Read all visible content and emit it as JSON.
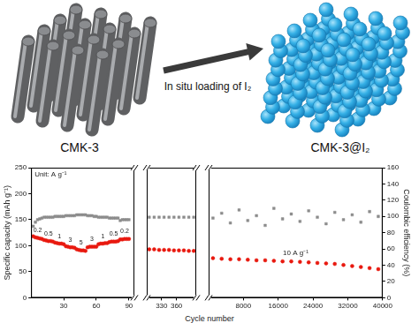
{
  "diagram": {
    "left_label": "CMK-3",
    "arrow_label": "In situ loading of I₂",
    "right_label": "CMK-3@I₂"
  },
  "chart_data": [
    {
      "type": "scatter",
      "grid": false,
      "y_label": "Specific capacity (mAh g⁻¹)",
      "xlim": [
        0,
        95
      ],
      "xticks": [
        30,
        60,
        90
      ],
      "ylim": [
        0,
        250
      ],
      "yticks": [
        0,
        50,
        100,
        150,
        200,
        250
      ],
      "y2lim": [
        0,
        160
      ],
      "x": [
        2,
        4,
        6,
        8,
        10,
        12,
        14,
        16,
        18,
        20,
        22,
        24,
        26,
        28,
        30,
        32,
        34,
        36,
        38,
        40,
        42,
        44,
        46,
        48,
        50,
        52,
        54,
        56,
        58,
        60,
        62,
        64,
        66,
        68,
        70,
        72,
        74,
        76,
        78,
        80,
        82,
        84,
        86,
        88,
        90
      ],
      "series": [
        {
          "color": "#e8190f",
          "marker": "circle",
          "values": [
            118,
            116,
            115,
            114,
            113,
            111,
            110,
            109,
            109,
            108,
            106,
            105,
            104,
            104,
            103,
            99,
            98,
            97,
            97,
            96,
            93,
            92,
            91,
            91,
            90,
            97,
            98,
            98,
            98,
            98,
            103,
            104,
            104,
            105,
            105,
            107,
            108,
            108,
            108,
            109,
            112,
            112,
            113,
            113,
            113
          ]
        },
        {
          "color": "#8c8c8c",
          "marker": "square",
          "axis": "y2",
          "values": [
            88,
            93,
            96,
            97,
            98,
            99,
            99,
            99,
            99,
            99,
            100,
            100,
            100,
            100,
            100,
            101,
            101,
            101,
            101,
            101,
            102,
            102,
            102,
            102,
            102,
            101,
            101,
            101,
            100,
            100,
            99,
            99,
            99,
            99,
            99,
            98,
            98,
            98,
            98,
            98,
            95,
            96,
            96,
            96,
            96
          ]
        }
      ],
      "annotations": [
        {
          "text": "Unit: A g⁻¹"
        },
        {
          "text": "0.2",
          "x": 6
        },
        {
          "text": "0.5",
          "x": 16
        },
        {
          "text": "1",
          "x": 26
        },
        {
          "text": "3",
          "x": 36
        },
        {
          "text": "5",
          "x": 46
        },
        {
          "text": "3",
          "x": 56
        },
        {
          "text": "1",
          "x": 66
        },
        {
          "text": "0.5",
          "x": 76
        },
        {
          "text": "0.2",
          "x": 86
        }
      ]
    },
    {
      "type": "scatter",
      "grid": false,
      "x_label": "Cycle number",
      "xlim": [
        300,
        400
      ],
      "xticks": [
        330,
        360
      ],
      "ylim": [
        0,
        250
      ],
      "y2lim": [
        0,
        160
      ],
      "x": [
        305,
        315,
        325,
        335,
        345,
        355,
        365,
        375,
        385,
        395
      ],
      "series": [
        {
          "color": "#e8190f",
          "marker": "circle",
          "values": [
            93,
            93,
            92,
            92,
            92,
            91,
            91,
            91,
            90,
            90
          ]
        },
        {
          "color": "#8c8c8c",
          "marker": "square",
          "axis": "y2",
          "values": [
            99,
            99,
            99,
            99,
            99,
            99,
            99,
            99,
            99,
            99
          ]
        }
      ]
    },
    {
      "type": "scatter",
      "grid": false,
      "y2_label": "Coulombic efficiency (%)",
      "xlim": [
        0,
        40000
      ],
      "xticks": [
        8000,
        16000,
        24000,
        32000,
        40000
      ],
      "ylim": [
        0,
        250
      ],
      "y2lim": [
        0,
        160
      ],
      "y2ticks": [
        0,
        20,
        40,
        60,
        80,
        100,
        120,
        140,
        160
      ],
      "x": [
        1000,
        3000,
        5000,
        7000,
        9000,
        11000,
        13000,
        15000,
        17000,
        19000,
        21000,
        23000,
        25000,
        27000,
        29000,
        31000,
        33000,
        35000,
        37000,
        39000
      ],
      "series": [
        {
          "color": "#e8190f",
          "marker": "circle",
          "values": [
            76,
            75,
            74,
            74,
            73,
            72,
            72,
            71,
            70,
            70,
            69,
            68,
            67,
            66,
            65,
            63,
            61,
            59,
            57,
            55
          ]
        },
        {
          "color": "#8c8c8c",
          "marker": "square",
          "axis": "y2",
          "values": [
            98,
            104,
            92,
            108,
            95,
            101,
            89,
            110,
            97,
            103,
            94,
            107,
            99,
            91,
            105,
            96,
            102,
            93,
            106,
            100
          ]
        }
      ],
      "annotations": [
        {
          "text": "10 A g⁻¹",
          "x": 20000
        }
      ]
    }
  ]
}
